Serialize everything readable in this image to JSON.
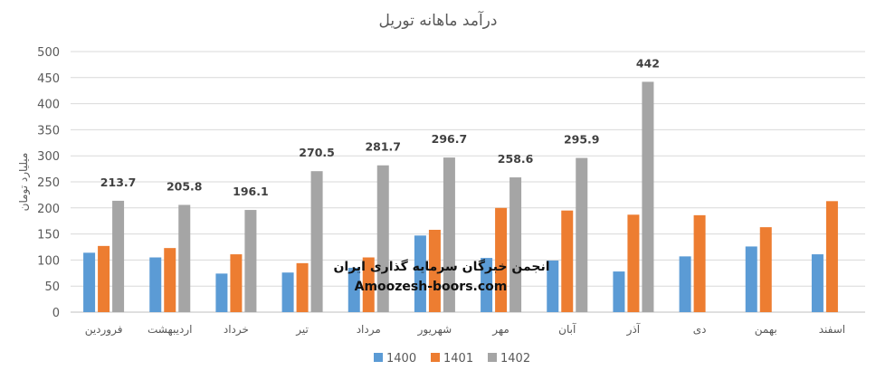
{
  "chart_data": {
    "type": "bar",
    "title": "درآمد ماهانه توریل",
    "ylabel": "میلیارد تومان",
    "xlabel": "",
    "ylim": [
      0,
      500
    ],
    "yticks": [
      0,
      50,
      100,
      150,
      200,
      250,
      300,
      350,
      400,
      450,
      500
    ],
    "grid": true,
    "legend_position": "bottom",
    "categories": [
      "فروردین",
      "اردیبهشت",
      "خرداد",
      "تیر",
      "مرداد",
      "شهریور",
      "مهر",
      "آبان",
      "آذر",
      "دی",
      "بهمن",
      "اسفند"
    ],
    "series": [
      {
        "name": "1400",
        "color": "#5B9BD5",
        "values": [
          114,
          105,
          74,
          76,
          85,
          147,
          104,
          99,
          78,
          107,
          126,
          111
        ]
      },
      {
        "name": "1401",
        "color": "#ED7D31",
        "values": [
          127,
          123,
          111,
          94,
          105,
          158,
          200,
          195,
          187,
          186,
          163,
          213
        ]
      },
      {
        "name": "1402",
        "color": "#A5A5A5",
        "values": [
          213.7,
          205.8,
          196.1,
          270.5,
          281.7,
          296.7,
          258.6,
          295.9,
          442,
          null,
          null,
          null
        ]
      }
    ],
    "data_labels": {
      "series": "1402",
      "labels": [
        "213.7",
        "205.8",
        "196.1",
        "270.5",
        "281.7",
        "296.7",
        "258.6",
        "295.9",
        "442"
      ]
    }
  },
  "watermark": {
    "line1": "انجمن خبرگان سرمایه گذاری ایران",
    "line2": "Amoozesh-boors.com"
  }
}
